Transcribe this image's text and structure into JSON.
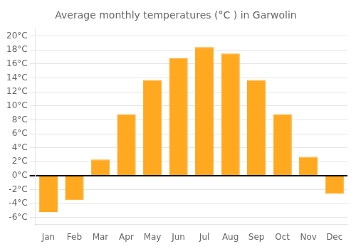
{
  "chart_data": {
    "type": "bar",
    "title": "Average monthly temperatures (°C ) in Garwolin",
    "categories": [
      "Jan",
      "Feb",
      "Mar",
      "Apr",
      "May",
      "Jun",
      "Jul",
      "Aug",
      "Sep",
      "Oct",
      "Nov",
      "Dec"
    ],
    "values": [
      -5.2,
      -3.5,
      2.3,
      8.8,
      13.7,
      16.8,
      18.4,
      17.5,
      13.7,
      8.8,
      2.7,
      -2.6
    ],
    "color": "#FFA820",
    "ylim": [
      -7,
      21
    ],
    "yticks": [
      {
        "value": -6,
        "label": "-6°C"
      },
      {
        "value": -4,
        "label": "-4°C"
      },
      {
        "value": -2,
        "label": "-2°C"
      },
      {
        "value": 0,
        "label": "0°C"
      },
      {
        "value": 2,
        "label": "2°C"
      },
      {
        "value": 4,
        "label": "4°C"
      },
      {
        "value": 6,
        "label": "6°C"
      },
      {
        "value": 8,
        "label": "8°C"
      },
      {
        "value": 10,
        "label": "10°C"
      },
      {
        "value": 12,
        "label": "12°C"
      },
      {
        "value": 14,
        "label": "14°C"
      },
      {
        "value": 16,
        "label": "16°C"
      },
      {
        "value": 18,
        "label": "18°C"
      },
      {
        "value": 20,
        "label": "20°C"
      }
    ],
    "grid": true
  }
}
